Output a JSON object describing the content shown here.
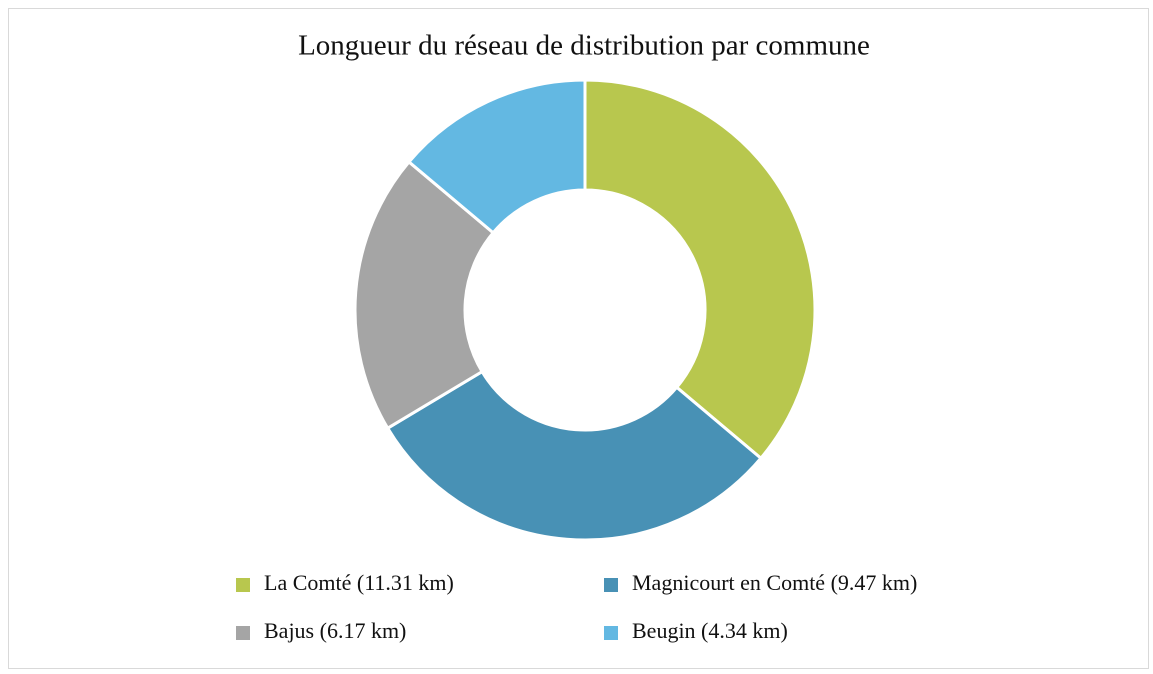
{
  "chart_data": {
    "type": "donut",
    "title": "Longueur du réseau de distribution par commune",
    "categories": [
      "La Comté (11.31 km)",
      "Magnicourt en Comté (9.47 km)",
      "Bajus (6.17 km)",
      "Beugin (4.34 km)"
    ],
    "values": [
      11.31,
      9.47,
      6.17,
      4.34
    ],
    "colors": [
      "#b8c74e",
      "#4891b5",
      "#a5a5a5",
      "#63b8e2"
    ],
    "legend": "bottom"
  }
}
